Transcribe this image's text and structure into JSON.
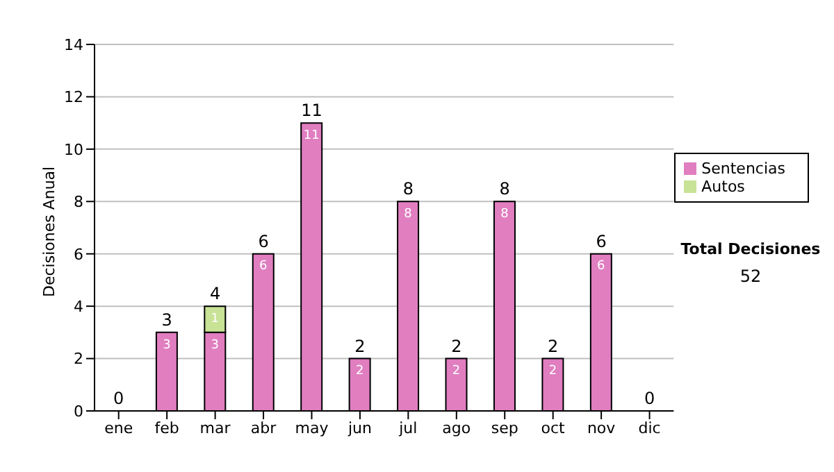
{
  "chart_data": {
    "type": "bar",
    "ylabel": "Decisiones Anual",
    "categories": [
      "ene",
      "feb",
      "mar",
      "abr",
      "may",
      "jun",
      "jul",
      "ago",
      "sep",
      "oct",
      "nov",
      "dic"
    ],
    "series": [
      {
        "name": "Sentencias",
        "color": "#e07ec0",
        "values": [
          0,
          3,
          3,
          6,
          11,
          2,
          8,
          2,
          8,
          2,
          6,
          0
        ],
        "value_labels": [
          null,
          "3",
          "3",
          "6",
          "11",
          "2",
          "8",
          "2",
          "8",
          "2",
          "6",
          null
        ]
      },
      {
        "name": "Autos",
        "color": "#c8e296",
        "values": [
          0,
          0,
          1,
          0,
          0,
          0,
          0,
          0,
          0,
          0,
          0,
          0
        ],
        "value_labels": [
          null,
          null,
          "1",
          null,
          null,
          null,
          null,
          null,
          null,
          null,
          null,
          null
        ]
      }
    ],
    "stacked": true,
    "totals": [
      "0",
      "3",
      "4",
      "6",
      "11",
      "2",
      "8",
      "2",
      "8",
      "2",
      "6",
      "0"
    ],
    "ylim": [
      0,
      14
    ],
    "yticks": [
      0,
      2,
      4,
      6,
      8,
      10,
      12,
      14
    ],
    "grid": "y",
    "legend": "right",
    "annotations": [
      "Total Decisiones",
      "52"
    ]
  }
}
